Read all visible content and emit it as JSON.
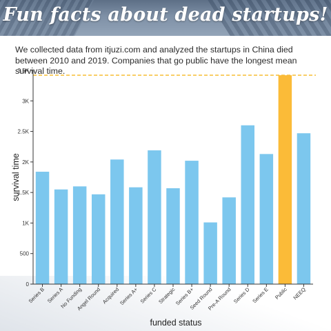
{
  "header": {
    "title": "Fun facts about dead startups!",
    "subtitle": "We collected data from itjuzi.com and analyzed the startups in China died between 2010 and 2019. Companies that go public have the longest mean survival time."
  },
  "chart_data": {
    "type": "bar",
    "title": "",
    "xlabel": "funded status",
    "ylabel": "survival time",
    "ylim": [
      0,
      3500
    ],
    "yticks": [
      0,
      500,
      1000,
      1500,
      2000,
      2500,
      3000,
      3500
    ],
    "ytick_labels": [
      "0",
      "500",
      "1K",
      "1.5K",
      "2K",
      "2.5K",
      "3K",
      "3.5K"
    ],
    "categories": [
      "Series B",
      "Series A",
      "No Funding",
      "Angel Round",
      "Acquired",
      "Series A+",
      "Series C",
      "Strategic",
      "Series B+",
      "Seed Round",
      "Pre-A Round",
      "Series D",
      "Series E",
      "Public",
      "NEEQ"
    ],
    "values": [
      1840,
      1550,
      1600,
      1470,
      2040,
      1585,
      2190,
      1570,
      2020,
      1010,
      1420,
      2600,
      2130,
      3420,
      2470
    ],
    "highlight_index": 13,
    "reference_line": 3420,
    "grid": false,
    "colors": {
      "bar": "#7cc7ee",
      "highlight": "#fbbb38",
      "reference_line": "#f5b820",
      "axis": "#333333"
    }
  }
}
